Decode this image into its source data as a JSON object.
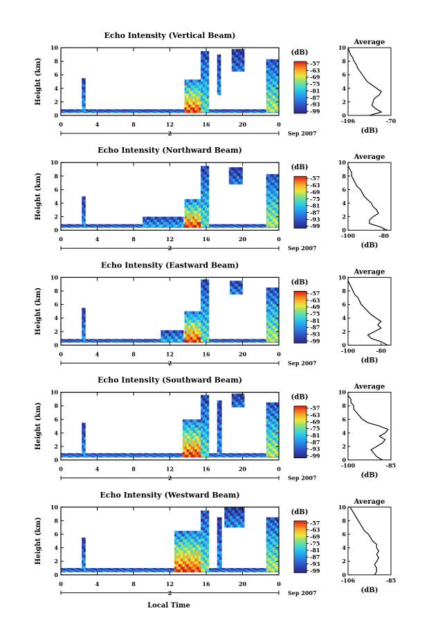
{
  "figure": {
    "xlabel": "Local Time",
    "colorscale": [
      "#2a2a7f",
      "#2f45b8",
      "#2c78e0",
      "#22b0ef",
      "#3fd6d4",
      "#8fe07a",
      "#e8e840",
      "#f5b42a",
      "#f06a1c",
      "#d61e12"
    ]
  },
  "chart_data": [
    {
      "type": "heatmap",
      "title": "Echo Intensity (Vertical Beam)",
      "ylabel": "Height (km)",
      "yticks": [
        "0",
        "2",
        "4",
        "6",
        "8",
        "10"
      ],
      "ylim": [
        0,
        10
      ],
      "xticks": [
        "0",
        "4",
        "8",
        "12",
        "16",
        "20",
        "0"
      ],
      "xlim": [
        0,
        24
      ],
      "date_marker": "2",
      "date_suffix": "Sep 2007",
      "colorbar_label": "(dB)",
      "colorbar_ticks": [
        "-57",
        "-63",
        "-69",
        "-75",
        "-81",
        "-87",
        "-93",
        "-99"
      ],
      "echo_regions": [
        {
          "t0": 0,
          "t1": 24,
          "h0": 0.4,
          "h1": 0.9,
          "level": 0.25
        },
        {
          "t0": 2.3,
          "t1": 2.7,
          "h0": 0.5,
          "h1": 5.5,
          "level": 0.35
        },
        {
          "t0": 13.6,
          "t1": 15.4,
          "h0": 0.4,
          "h1": 5.3,
          "level": 0.9
        },
        {
          "t0": 15.4,
          "t1": 16.3,
          "h0": 0.5,
          "h1": 9.5,
          "level": 0.5
        },
        {
          "t0": 17.2,
          "t1": 17.6,
          "h0": 3.0,
          "h1": 9.0,
          "level": 0.3
        },
        {
          "t0": 18.8,
          "t1": 20.2,
          "h0": 6.5,
          "h1": 9.8,
          "level": 0.25
        },
        {
          "t0": 22.6,
          "t1": 24,
          "h0": 0.5,
          "h1": 8.3,
          "level": 0.6
        }
      ],
      "average": {
        "title": "Average",
        "xlabel": "(dB)",
        "xticks": [
          "-106",
          "-70"
        ],
        "xlim": [
          -106,
          -70
        ],
        "yticks": [
          "0",
          "2",
          "4",
          "6",
          "8",
          "10"
        ],
        "profile": [
          [
            0,
            -88
          ],
          [
            0.5,
            -78
          ],
          [
            1,
            -83
          ],
          [
            1.5,
            -86
          ],
          [
            2,
            -85
          ],
          [
            2.5,
            -84
          ],
          [
            3,
            -80
          ],
          [
            3.5,
            -78
          ],
          [
            4,
            -82
          ],
          [
            4.5,
            -86
          ],
          [
            5,
            -90
          ],
          [
            5.5,
            -92
          ],
          [
            6,
            -94
          ],
          [
            6.5,
            -96
          ],
          [
            7,
            -98
          ],
          [
            7.5,
            -99
          ],
          [
            8,
            -101
          ],
          [
            8.5,
            -102
          ],
          [
            9,
            -104
          ],
          [
            9.5,
            -105
          ],
          [
            10,
            -106
          ]
        ]
      }
    },
    {
      "type": "heatmap",
      "title": "Echo Intensity (Northward Beam)",
      "ylabel": "Height (km)",
      "yticks": [
        "0",
        "2",
        "4",
        "6",
        "8",
        "10"
      ],
      "ylim": [
        0,
        10
      ],
      "xticks": [
        "0",
        "4",
        "8",
        "12",
        "16",
        "20",
        "0"
      ],
      "xlim": [
        0,
        24
      ],
      "date_marker": "2",
      "date_suffix": "Sep 2007",
      "colorbar_label": "(dB)",
      "colorbar_ticks": [
        "-57",
        "-63",
        "-69",
        "-75",
        "-81",
        "-87",
        "-93",
        "-99"
      ],
      "echo_regions": [
        {
          "t0": 0,
          "t1": 24,
          "h0": 0.4,
          "h1": 0.9,
          "level": 0.25
        },
        {
          "t0": 2.3,
          "t1": 2.7,
          "h0": 0.5,
          "h1": 5.0,
          "level": 0.3
        },
        {
          "t0": 9.0,
          "t1": 13.5,
          "h0": 0.5,
          "h1": 2.0,
          "level": 0.35
        },
        {
          "t0": 13.6,
          "t1": 15.4,
          "h0": 0.4,
          "h1": 4.6,
          "level": 0.9
        },
        {
          "t0": 15.4,
          "t1": 16.3,
          "h0": 0.5,
          "h1": 9.5,
          "level": 0.5
        },
        {
          "t0": 18.5,
          "t1": 20.0,
          "h0": 6.8,
          "h1": 9.3,
          "level": 0.25
        },
        {
          "t0": 22.6,
          "t1": 24,
          "h0": 0.5,
          "h1": 8.3,
          "level": 0.6
        }
      ],
      "average": {
        "title": "Average",
        "xlabel": "(dB)",
        "xticks": [
          "-100",
          "-80"
        ],
        "xlim": [
          -100,
          -76
        ],
        "yticks": [
          "0",
          "2",
          "4",
          "6",
          "8",
          "10"
        ],
        "profile": [
          [
            0,
            -78
          ],
          [
            0.5,
            -82
          ],
          [
            1,
            -88
          ],
          [
            1.5,
            -88
          ],
          [
            2,
            -86
          ],
          [
            2.5,
            -83
          ],
          [
            3,
            -84
          ],
          [
            3.5,
            -86
          ],
          [
            4,
            -87
          ],
          [
            4.5,
            -89
          ],
          [
            5,
            -91
          ],
          [
            5.5,
            -92
          ],
          [
            6,
            -93
          ],
          [
            6.5,
            -95
          ],
          [
            7,
            -96
          ],
          [
            7.5,
            -97
          ],
          [
            8,
            -98
          ],
          [
            8.5,
            -98
          ],
          [
            9,
            -99
          ],
          [
            9.5,
            -100
          ],
          [
            10,
            -100
          ]
        ]
      }
    },
    {
      "type": "heatmap",
      "title": "Echo Intensity (Eastward Beam)",
      "ylabel": "Height (km)",
      "yticks": [
        "0",
        "2",
        "4",
        "6",
        "8",
        "10"
      ],
      "ylim": [
        0,
        10
      ],
      "xticks": [
        "0",
        "4",
        "8",
        "12",
        "16",
        "20",
        "0"
      ],
      "xlim": [
        0,
        24
      ],
      "date_marker": "2",
      "date_suffix": "Sep 2007",
      "colorbar_label": "(dB)",
      "colorbar_ticks": [
        "-57",
        "-63",
        "-69",
        "-75",
        "-81",
        "-87",
        "-93",
        "-99"
      ],
      "echo_regions": [
        {
          "t0": 0,
          "t1": 24,
          "h0": 0.4,
          "h1": 0.9,
          "level": 0.25
        },
        {
          "t0": 2.3,
          "t1": 2.7,
          "h0": 0.5,
          "h1": 5.5,
          "level": 0.3
        },
        {
          "t0": 11.0,
          "t1": 13.5,
          "h0": 0.5,
          "h1": 2.2,
          "level": 0.35
        },
        {
          "t0": 13.6,
          "t1": 15.4,
          "h0": 0.4,
          "h1": 5.0,
          "level": 0.9
        },
        {
          "t0": 15.4,
          "t1": 16.3,
          "h0": 0.5,
          "h1": 9.7,
          "level": 0.5
        },
        {
          "t0": 18.6,
          "t1": 20.0,
          "h0": 7.5,
          "h1": 9.5,
          "level": 0.3
        },
        {
          "t0": 22.6,
          "t1": 24,
          "h0": 0.5,
          "h1": 8.5,
          "level": 0.6
        }
      ],
      "average": {
        "title": "Average",
        "xlabel": "(dB)",
        "xticks": [
          "-100",
          "-80"
        ],
        "xlim": [
          -100,
          -74
        ],
        "yticks": [
          "0",
          "2",
          "4",
          "6",
          "8",
          "10"
        ],
        "profile": [
          [
            0,
            -76
          ],
          [
            0.5,
            -80
          ],
          [
            1,
            -86
          ],
          [
            1.5,
            -88
          ],
          [
            2,
            -84
          ],
          [
            2.5,
            -80
          ],
          [
            3,
            -82
          ],
          [
            3.5,
            -80
          ],
          [
            4,
            -83
          ],
          [
            4.5,
            -86
          ],
          [
            5,
            -88
          ],
          [
            5.5,
            -90
          ],
          [
            6,
            -92
          ],
          [
            6.5,
            -93
          ],
          [
            7,
            -94
          ],
          [
            7.5,
            -96
          ],
          [
            8,
            -97
          ],
          [
            8.5,
            -98
          ],
          [
            9,
            -99
          ],
          [
            9.5,
            -100
          ],
          [
            10,
            -100
          ]
        ]
      }
    },
    {
      "type": "heatmap",
      "title": "Echo Intensity (Southward Beam)",
      "ylabel": "Height (km)",
      "yticks": [
        "0",
        "2",
        "4",
        "6",
        "8",
        "10"
      ],
      "ylim": [
        0,
        10
      ],
      "xticks": [
        "0",
        "4",
        "8",
        "12",
        "16",
        "20",
        "0"
      ],
      "xlim": [
        0,
        24
      ],
      "date_marker": "2",
      "date_suffix": "Sep 2007",
      "colorbar_label": "(dB)",
      "colorbar_ticks": [
        "-57",
        "-63",
        "-69",
        "-75",
        "-81",
        "-87",
        "-93",
        "-99"
      ],
      "echo_regions": [
        {
          "t0": 0,
          "t1": 24,
          "h0": 0.4,
          "h1": 1.0,
          "level": 0.3
        },
        {
          "t0": 2.3,
          "t1": 2.7,
          "h0": 0.5,
          "h1": 5.5,
          "level": 0.3
        },
        {
          "t0": 13.4,
          "t1": 15.4,
          "h0": 0.4,
          "h1": 6.0,
          "level": 0.9
        },
        {
          "t0": 15.4,
          "t1": 16.3,
          "h0": 0.5,
          "h1": 9.6,
          "level": 0.5
        },
        {
          "t0": 17.2,
          "t1": 17.7,
          "h0": 0.8,
          "h1": 8.8,
          "level": 0.3
        },
        {
          "t0": 18.8,
          "t1": 20.2,
          "h0": 7.8,
          "h1": 9.8,
          "level": 0.25
        },
        {
          "t0": 22.6,
          "t1": 24,
          "h0": 0.5,
          "h1": 8.5,
          "level": 0.6
        }
      ],
      "average": {
        "title": "Average",
        "xlabel": "(dB)",
        "xticks": [
          "-100",
          "-85"
        ],
        "xlim": [
          -100,
          -85
        ],
        "yticks": [
          "0",
          "2",
          "4",
          "6",
          "8",
          "10"
        ],
        "profile": [
          [
            0,
            -88
          ],
          [
            0.5,
            -90
          ],
          [
            1,
            -91
          ],
          [
            1.5,
            -92
          ],
          [
            2,
            -90
          ],
          [
            2.5,
            -88
          ],
          [
            3,
            -87
          ],
          [
            3.5,
            -89
          ],
          [
            4,
            -87
          ],
          [
            4.5,
            -86
          ],
          [
            5,
            -89
          ],
          [
            5.5,
            -93
          ],
          [
            6,
            -95
          ],
          [
            6.5,
            -96
          ],
          [
            7,
            -97
          ],
          [
            7.5,
            -98
          ],
          [
            8,
            -98
          ],
          [
            8.5,
            -99
          ],
          [
            9,
            -99
          ],
          [
            9.5,
            -100
          ],
          [
            10,
            -100
          ]
        ]
      }
    },
    {
      "type": "heatmap",
      "title": "Echo Intensity (Westward Beam)",
      "ylabel": "Height (km)",
      "yticks": [
        "0",
        "2",
        "4",
        "6",
        "8",
        "10"
      ],
      "ylim": [
        0,
        10
      ],
      "xticks": [
        "0",
        "4",
        "8",
        "12",
        "16",
        "20",
        "0"
      ],
      "xlim": [
        0,
        24
      ],
      "date_marker": "2",
      "date_suffix": "Sep 2007",
      "colorbar_label": "(dB)",
      "colorbar_ticks": [
        "-57",
        "-63",
        "-69",
        "-75",
        "-81",
        "-87",
        "-93",
        "-99"
      ],
      "echo_regions": [
        {
          "t0": 0,
          "t1": 24,
          "h0": 0.4,
          "h1": 1.0,
          "level": 0.3
        },
        {
          "t0": 2.3,
          "t1": 2.7,
          "h0": 0.5,
          "h1": 5.5,
          "level": 0.3
        },
        {
          "t0": 12.5,
          "t1": 15.4,
          "h0": 0.4,
          "h1": 6.5,
          "level": 0.9
        },
        {
          "t0": 15.4,
          "t1": 16.3,
          "h0": 0.5,
          "h1": 9.5,
          "level": 0.55
        },
        {
          "t0": 17.2,
          "t1": 17.7,
          "h0": 1.0,
          "h1": 8.5,
          "level": 0.3
        },
        {
          "t0": 18.0,
          "t1": 20.2,
          "h0": 7.0,
          "h1": 10.0,
          "level": 0.3
        },
        {
          "t0": 22.6,
          "t1": 24,
          "h0": 0.5,
          "h1": 8.5,
          "level": 0.6
        }
      ],
      "average": {
        "title": "Average",
        "xlabel": "(dB)",
        "xticks": [
          "-106",
          "-85"
        ],
        "xlim": [
          -106,
          -85
        ],
        "yticks": [
          "0",
          "2",
          "4",
          "6",
          "8",
          "10"
        ],
        "profile": [
          [
            0,
            -93
          ],
          [
            0.5,
            -92
          ],
          [
            1,
            -92
          ],
          [
            1.5,
            -93
          ],
          [
            2,
            -92
          ],
          [
            2.5,
            -91
          ],
          [
            3,
            -92
          ],
          [
            3.5,
            -91
          ],
          [
            4,
            -92
          ],
          [
            4.5,
            -92
          ],
          [
            5,
            -94
          ],
          [
            5.5,
            -95
          ],
          [
            6,
            -96
          ],
          [
            6.5,
            -98
          ],
          [
            7,
            -99
          ],
          [
            7.5,
            -100
          ],
          [
            8,
            -101
          ],
          [
            8.5,
            -102
          ],
          [
            9,
            -103
          ],
          [
            9.5,
            -104
          ],
          [
            10,
            -105
          ]
        ]
      }
    }
  ]
}
